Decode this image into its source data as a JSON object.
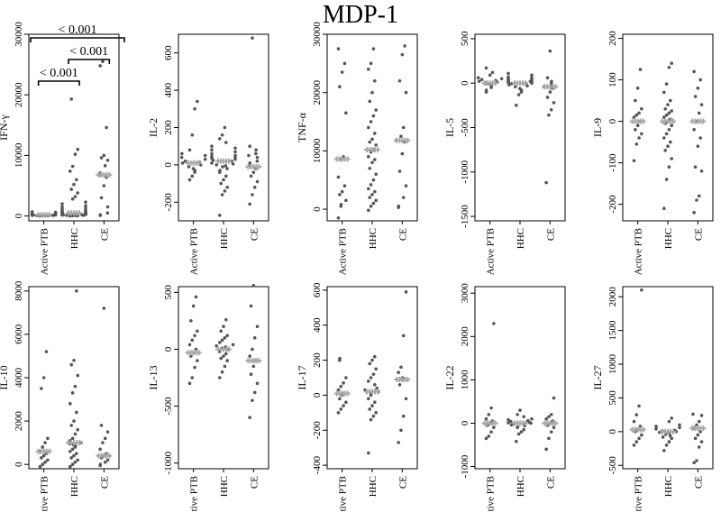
{
  "figure_title": "MDP-1",
  "colors": {
    "dot": "#555555",
    "median": "#a8a8a8",
    "axis": "#000000"
  },
  "chart_data": [
    {
      "type": "scatter",
      "ylabel": "IFN-γ",
      "ylim": [
        -800,
        30000
      ],
      "yticks": [
        0,
        10000,
        20000,
        30000
      ],
      "categories": [
        "Active PTB",
        "HHC",
        "CE"
      ],
      "groups": [
        {
          "name": "Active PTB",
          "median": 200,
          "values": [
            50,
            80,
            100,
            120,
            150,
            180,
            200,
            220,
            250,
            300,
            350,
            420,
            500,
            600,
            700,
            30,
            60,
            90,
            110,
            140
          ]
        },
        {
          "name": "HHC",
          "median": 500,
          "values": [
            19300,
            11000,
            10200,
            8200,
            7400,
            6000,
            5200,
            4400,
            3800,
            3200,
            2800,
            2300,
            2000,
            1700,
            1500,
            1300,
            1100,
            900,
            800,
            700,
            600,
            500,
            450,
            400,
            350,
            300,
            250,
            200,
            150,
            120,
            100,
            80,
            60,
            40,
            20,
            10,
            600,
            700,
            300,
            200
          ]
        },
        {
          "name": "CE",
          "median": 6800,
          "values": [
            25500,
            24800,
            14600,
            10000,
            9600,
            9200,
            8300,
            7100,
            6800,
            6400,
            5000,
            3000,
            1500,
            500,
            200,
            100
          ]
        }
      ],
      "significance": [
        {
          "label": "< 0.001",
          "from": "Active PTB",
          "to": "CE"
        },
        {
          "label": "< 0.001",
          "from": "Active PTB",
          "to": "HHC"
        },
        {
          "label": "< 0.001",
          "from": "HHC",
          "to": "CE"
        }
      ]
    },
    {
      "type": "scatter",
      "ylabel": "IL-2",
      "ylim": [
        -300,
        700
      ],
      "yticks": [
        -200,
        0,
        200,
        400,
        600
      ],
      "categories": [
        "Active PTB",
        "HHC",
        "CE"
      ],
      "groups": [
        {
          "name": "Active PTB",
          "median": 10,
          "values": [
            340,
            300,
            160,
            80,
            60,
            40,
            20,
            10,
            0,
            -10,
            -20,
            -40,
            -60,
            -80,
            30,
            50,
            -30,
            15
          ]
        },
        {
          "name": "HHC",
          "median": 20,
          "values": [
            200,
            160,
            140,
            120,
            100,
            90,
            80,
            70,
            60,
            50,
            40,
            30,
            20,
            10,
            0,
            -10,
            -20,
            -30,
            -40,
            -60,
            -80,
            -100,
            -120,
            -140,
            -160,
            -270,
            25,
            35,
            45,
            5,
            -5
          ]
        },
        {
          "name": "CE",
          "median": -10,
          "values": [
            680,
            100,
            80,
            60,
            40,
            20,
            0,
            -20,
            -40,
            -60,
            -90,
            -120,
            -160,
            -210,
            50,
            10
          ]
        }
      ]
    },
    {
      "type": "scatter",
      "ylabel": "TNF-α",
      "ylim": [
        -2000,
        30000
      ],
      "yticks": [
        0,
        10000,
        20000,
        30000
      ],
      "categories": [
        "Active PTB",
        "HHC",
        "CE"
      ],
      "groups": [
        {
          "name": "Active PTB",
          "median": 8600,
          "values": [
            27500,
            25000,
            23500,
            21000,
            16500,
            9000,
            8600,
            5500,
            4000,
            3000,
            2500,
            1500,
            800,
            500,
            -1500
          ]
        },
        {
          "name": "HHC",
          "median": 10200,
          "values": [
            27500,
            25000,
            24000,
            22000,
            20000,
            18500,
            17000,
            16000,
            15000,
            14000,
            13000,
            12000,
            11500,
            11000,
            10200,
            9800,
            9000,
            8500,
            8000,
            7000,
            6000,
            5000,
            4200,
            3500,
            3000,
            2500,
            2000,
            1500,
            1000,
            500,
            -200
          ]
        },
        {
          "name": "CE",
          "median": 11800,
          "values": [
            28000,
            26500,
            22000,
            20000,
            14000,
            12500,
            11800,
            11500,
            9500,
            6500,
            4000,
            2000,
            500,
            300
          ]
        }
      ]
    },
    {
      "type": "scatter",
      "ylabel": "IL-5",
      "ylim": [
        -1550,
        550
      ],
      "yticks": [
        -1500,
        -1000,
        -500,
        0,
        500
      ],
      "categories": [
        "Active PTB",
        "HHC",
        "CE"
      ],
      "groups": [
        {
          "name": "Active PTB",
          "median": 0,
          "values": [
            170,
            120,
            90,
            60,
            40,
            20,
            10,
            0,
            -10,
            -30,
            -50,
            -80,
            -100,
            30,
            50
          ]
        },
        {
          "name": "HHC",
          "median": 0,
          "values": [
            110,
            90,
            70,
            60,
            50,
            40,
            30,
            20,
            10,
            0,
            -10,
            -20,
            -30,
            -40,
            -60,
            -80,
            -100,
            -130,
            -250,
            15,
            25,
            -5,
            5,
            35
          ]
        },
        {
          "name": "CE",
          "median": -40,
          "values": [
            360,
            60,
            20,
            0,
            -30,
            -40,
            -60,
            -100,
            -160,
            -220,
            -300,
            -360,
            -1120
          ]
        }
      ]
    },
    {
      "type": "scatter",
      "ylabel": "IL-9",
      "ylim": [
        -240,
        210
      ],
      "yticks": [
        -200,
        -100,
        0,
        100,
        200
      ],
      "categories": [
        "Active PTB",
        "HHC",
        "CE"
      ],
      "groups": [
        {
          "name": "Active PTB",
          "median": 0,
          "values": [
            125,
            80,
            50,
            30,
            20,
            10,
            0,
            -10,
            -20,
            -30,
            -40,
            -55,
            -95,
            15
          ]
        },
        {
          "name": "HHC",
          "median": 0,
          "values": [
            140,
            130,
            90,
            70,
            50,
            40,
            30,
            20,
            10,
            0,
            -10,
            -20,
            -30,
            -40,
            -50,
            -60,
            -70,
            -90,
            -110,
            -140,
            -210,
            25,
            5,
            -5,
            15
          ]
        },
        {
          "name": "CE",
          "median": 0,
          "values": [
            120,
            100,
            80,
            60,
            40,
            20,
            0,
            -20,
            -40,
            -60,
            -110,
            -120,
            -180,
            -190,
            -220
          ]
        }
      ]
    },
    {
      "type": "scatter",
      "ylabel": "IL-10",
      "ylim": [
        -200,
        8200
      ],
      "yticks": [
        0,
        2000,
        4000,
        6000,
        8000
      ],
      "categories": [
        "Active PTB",
        "HHC",
        "CE"
      ],
      "groups": [
        {
          "name": "Active PTB",
          "median": 600,
          "values": [
            5200,
            4000,
            3500,
            1200,
            1000,
            800,
            600,
            500,
            400,
            300,
            200,
            100,
            0,
            -100
          ]
        },
        {
          "name": "HHC",
          "median": 1000,
          "values": [
            8000,
            4800,
            4600,
            4100,
            3600,
            3300,
            2800,
            2400,
            2000,
            1800,
            1600,
            1400,
            1200,
            1100,
            1000,
            950,
            900,
            850,
            800,
            700,
            600,
            500,
            400,
            300,
            200,
            100,
            0,
            -100
          ]
        },
        {
          "name": "CE",
          "median": 400,
          "values": [
            7200,
            1800,
            1500,
            1200,
            1000,
            700,
            500,
            400,
            300,
            200,
            100,
            0,
            -50
          ]
        }
      ]
    },
    {
      "type": "scatter",
      "ylabel": "IL-13",
      "ylim": [
        -1050,
        550
      ],
      "yticks": [
        -1000,
        -500,
        0,
        500
      ],
      "categories": [
        "Active PTB",
        "HHC",
        "CE"
      ],
      "groups": [
        {
          "name": "Active PTB",
          "median": -30,
          "values": [
            460,
            380,
            250,
            160,
            120,
            80,
            40,
            0,
            -30,
            -60,
            -100,
            -160,
            -250,
            -300
          ]
        },
        {
          "name": "HHC",
          "median": 0,
          "values": [
            260,
            200,
            160,
            120,
            100,
            80,
            60,
            40,
            20,
            0,
            -20,
            -40,
            -60,
            -80,
            -100,
            -150,
            -200,
            -250,
            10,
            -10,
            30
          ]
        },
        {
          "name": "CE",
          "median": -100,
          "values": [
            560,
            380,
            200,
            100,
            0,
            -60,
            -100,
            -150,
            -220,
            -300,
            -380,
            -450,
            -600
          ]
        }
      ]
    },
    {
      "type": "scatter",
      "ylabel": "IL-17",
      "ylim": [
        -420,
        620
      ],
      "yticks": [
        -400,
        -200,
        0,
        200,
        400,
        600
      ],
      "categories": [
        "Active PTB",
        "HHC",
        "CE"
      ],
      "groups": [
        {
          "name": "Active PTB",
          "median": 10,
          "values": [
            210,
            200,
            100,
            70,
            50,
            30,
            10,
            0,
            -20,
            -40,
            -60,
            -80,
            -100
          ]
        },
        {
          "name": "HHC",
          "median": 20,
          "values": [
            220,
            200,
            180,
            150,
            120,
            100,
            80,
            60,
            40,
            20,
            0,
            -20,
            -40,
            -60,
            -80,
            -100,
            -120,
            -140,
            -330,
            10,
            30
          ]
        },
        {
          "name": "CE",
          "median": 90,
          "values": [
            590,
            340,
            160,
            130,
            100,
            90,
            60,
            -20,
            -120,
            -200,
            -270
          ]
        }
      ]
    },
    {
      "type": "scatter",
      "ylabel": "IL-22",
      "ylim": [
        -1050,
        3150
      ],
      "yticks": [
        -1000,
        0,
        1000,
        2000,
        3000
      ],
      "categories": [
        "Active PTB",
        "HHC",
        "CE"
      ],
      "groups": [
        {
          "name": "Active PTB",
          "median": 0,
          "values": [
            2300,
            350,
            200,
            100,
            50,
            0,
            -50,
            -100,
            -200,
            -300,
            -350
          ]
        },
        {
          "name": "HHC",
          "median": 0,
          "values": [
            300,
            200,
            150,
            100,
            80,
            60,
            40,
            20,
            0,
            -20,
            -40,
            -60,
            -80,
            -100,
            -150,
            -200,
            -250,
            -420,
            10,
            -10
          ]
        },
        {
          "name": "CE",
          "median": 0,
          "values": [
            580,
            200,
            150,
            100,
            50,
            0,
            -50,
            -100,
            -200,
            -350,
            -600
          ]
        }
      ]
    },
    {
      "type": "scatter",
      "ylabel": "IL-27",
      "ylim": [
        -550,
        2150
      ],
      "yticks": [
        -500,
        0,
        500,
        1000,
        1500,
        2000
      ],
      "categories": [
        "Active PTB",
        "HHC",
        "CE"
      ],
      "groups": [
        {
          "name": "Active PTB",
          "median": 30,
          "values": [
            2100,
            380,
            250,
            150,
            80,
            30,
            0,
            -50,
            -100,
            -150,
            -200
          ]
        },
        {
          "name": "HHC",
          "median": 0,
          "values": [
            200,
            150,
            100,
            80,
            60,
            40,
            20,
            0,
            -20,
            -40,
            -60,
            -80,
            -100,
            -150,
            -200,
            -280,
            10,
            -10
          ]
        },
        {
          "name": "CE",
          "median": 50,
          "values": [
            260,
            240,
            150,
            100,
            50,
            0,
            -50,
            -100,
            -150,
            -230,
            -430,
            -460
          ]
        }
      ]
    }
  ]
}
